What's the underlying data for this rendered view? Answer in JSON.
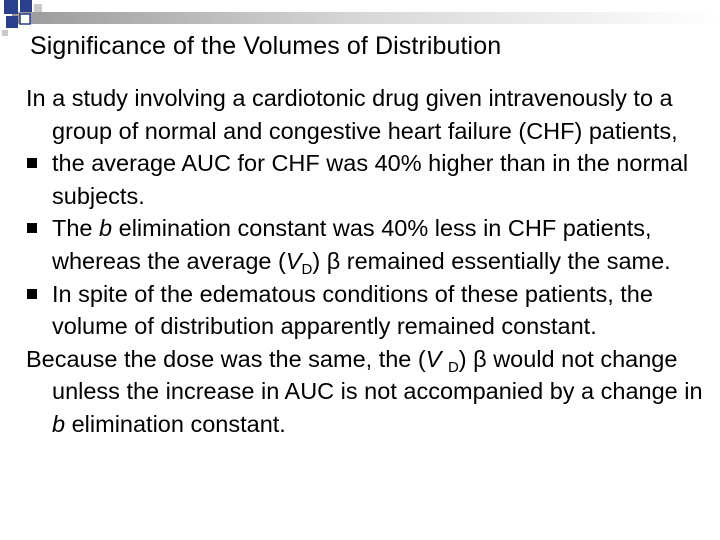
{
  "title": "Significance of the Volumes of Distribution",
  "intro": "In a study involving a cardiotonic drug given intravenously to a group of normal and congestive heart failure (CHF) patients,",
  "bullets": [
    {
      "text": "the average AUC for CHF was 40% higher than in the normal subjects."
    },
    {
      "before": "The ",
      "italic": "b",
      "after": " elimination constant was 40% less in CHF patients, whereas the average (",
      "v": "V",
      "sub": "D",
      "end": ") β remained essentially the same."
    },
    {
      "text": "In spite of the edematous conditions of these patients, the volume of distribution apparently remained constant."
    }
  ],
  "conclusion": {
    "before": "Because the dose was the same, the (",
    "v": "V ",
    "sub": "D",
    "middle": ") β would not change unless the increase in AUC is not accompanied by a change in ",
    "italic": "b",
    "after": " elimination constant."
  },
  "colors": {
    "accent_blue": "#2b3f8f",
    "accent_gray": "#c9c9c9",
    "bullet": "#000000"
  },
  "icons": {
    "bullet_marker": "black-square-icon",
    "corner_decoration": "decorative-squares-icon"
  }
}
